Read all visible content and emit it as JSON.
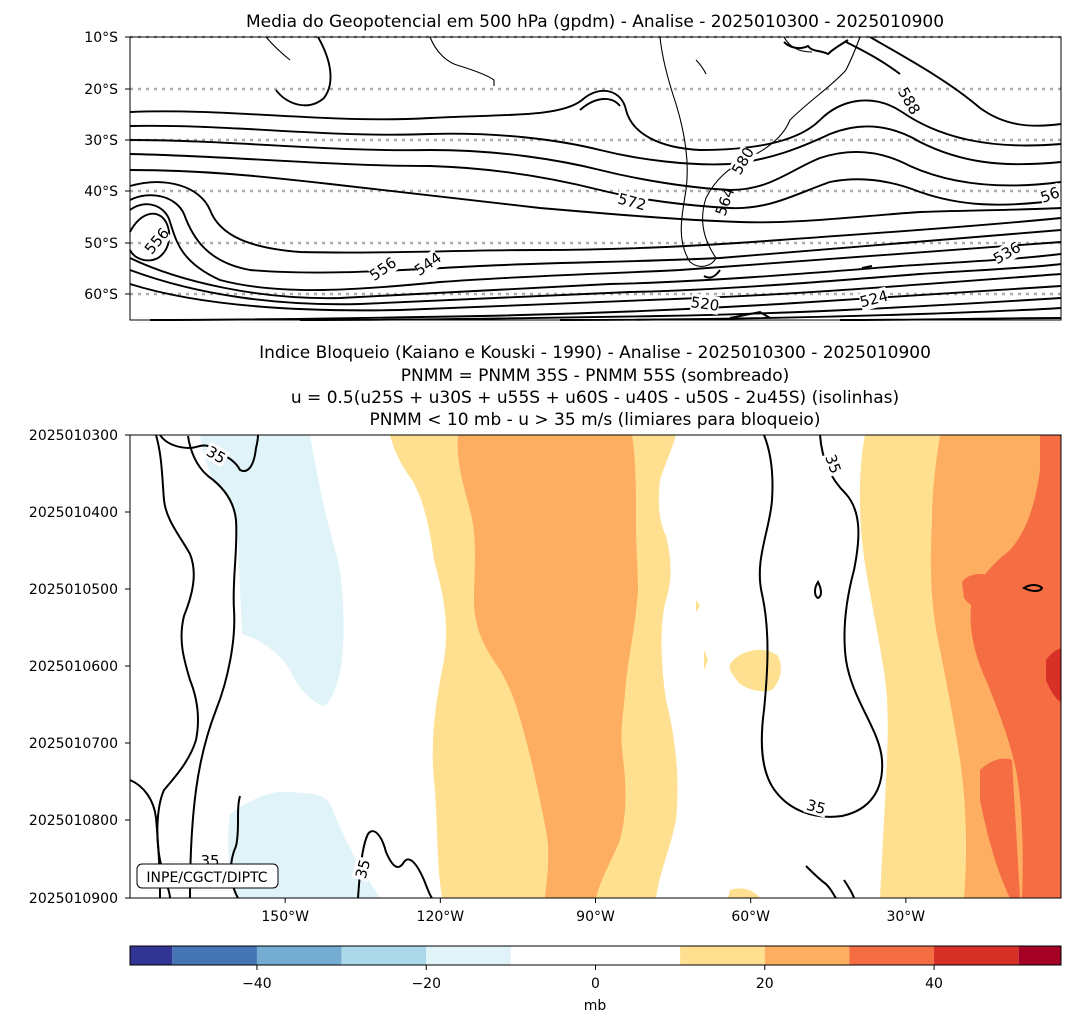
{
  "chart_data": [
    {
      "type": "contour-map",
      "title": "Media do Geopotencial em 500 hPa (gpdm) - Analise - 2025010300 - 2025010900",
      "y_tick_labels": [
        "10°S",
        "20°S",
        "30°S",
        "40°S",
        "50°S",
        "60°S"
      ],
      "lat_range": [
        -65,
        -10
      ],
      "lon_range": [
        -180,
        0
      ],
      "contour_interval": 4,
      "contour_labels": [
        "588",
        "580",
        "572",
        "564",
        "556",
        "556",
        "544",
        "536",
        "524",
        "520",
        "56"
      ]
    },
    {
      "type": "hovmoller-contour",
      "title_lines": [
        "Indice Bloqueio (Kaiano e Kouski - 1990) - Analise - 2025010300 - 2025010900",
        "PNMM = PNMM 35S - PNMM 55S (sombreado)",
        "u = 0.5(u25S + u30S + u55S + u60S - u40S - u50S - 2u45S) (isolinhas)",
        "PNMM < 10 mb - u > 35 m/s (limiares para bloqueio)"
      ],
      "y_tick_labels": [
        "2025010300",
        "2025010400",
        "2025010500",
        "2025010600",
        "2025010700",
        "2025010800",
        "2025010900"
      ],
      "x_tick_labels": [
        "150°W",
        "120°W",
        "90°W",
        "60°W",
        "30°W"
      ],
      "x_ticks_lon": [
        -150,
        -120,
        -90,
        -60,
        -30
      ],
      "lon_range": [
        -180,
        0
      ],
      "u_isoline_value": 35,
      "isoline_labels": [
        "35",
        "35",
        "35",
        "35",
        "35"
      ],
      "attribution": "INPE/CGCT/DIPTC",
      "shading_levels": [
        -55,
        -50,
        -40,
        -30,
        -20,
        -10,
        10,
        20,
        30,
        40,
        50,
        55
      ]
    }
  ],
  "colorbar": {
    "label": "mb",
    "range": [
      -55,
      55
    ],
    "levels": [
      -55,
      -50,
      -40,
      -30,
      -20,
      -10,
      10,
      20,
      30,
      40,
      50,
      55
    ],
    "colors": [
      "#313695",
      "#4575b4",
      "#74add1",
      "#abd9e9",
      "#e0f3f8",
      "#ffffff",
      "#fee090",
      "#fdae61",
      "#f46d43",
      "#d73027",
      "#a50026"
    ],
    "tick_values": [
      -40,
      -20,
      0,
      20,
      40
    ],
    "tick_labels": [
      "−40",
      "−20",
      "0",
      "20",
      "40"
    ]
  }
}
